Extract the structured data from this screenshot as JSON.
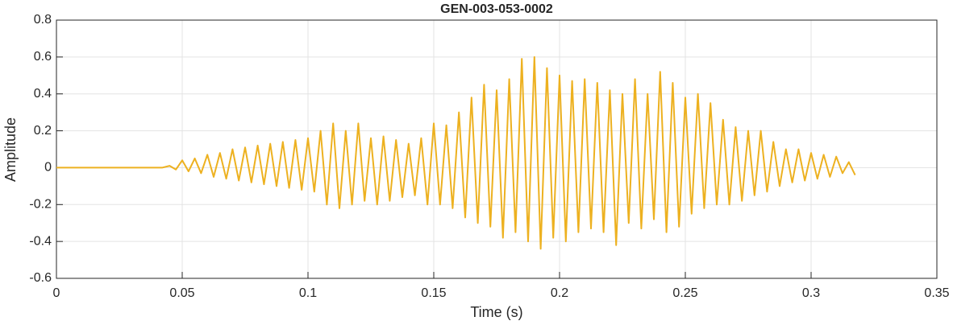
{
  "chart_data": {
    "type": "line",
    "title": "GEN-003-053-0002",
    "x_label": "Time (s)",
    "y_label": "Amplitude",
    "xlim": [
      0,
      0.35
    ],
    "xticks": [
      0,
      0.05,
      0.1,
      0.15,
      0.2,
      0.25,
      0.3,
      0.35
    ],
    "ylim": [
      -0.6,
      0.8
    ],
    "yticks": [
      -0.6,
      -0.4,
      -0.2,
      0,
      0.2,
      0.4,
      0.6,
      0.8
    ],
    "grid": true,
    "x": [
      0,
      0.042,
      0.045,
      0.0475,
      0.05,
      0.0525,
      0.055,
      0.0575,
      0.06,
      0.0625,
      0.065,
      0.0675,
      0.07,
      0.0725,
      0.075,
      0.0775,
      0.08,
      0.0825,
      0.085,
      0.0875,
      0.09,
      0.0925,
      0.095,
      0.0975,
      0.1,
      0.1025,
      0.105,
      0.1075,
      0.11,
      0.1125,
      0.115,
      0.1175,
      0.12,
      0.1225,
      0.125,
      0.1275,
      0.13,
      0.1325,
      0.135,
      0.1375,
      0.14,
      0.1425,
      0.145,
      0.1475,
      0.15,
      0.1525,
      0.155,
      0.1575,
      0.16,
      0.1625,
      0.165,
      0.1675,
      0.17,
      0.1725,
      0.175,
      0.1775,
      0.18,
      0.1825,
      0.185,
      0.1875,
      0.19,
      0.1925,
      0.195,
      0.1975,
      0.2,
      0.2025,
      0.205,
      0.2075,
      0.21,
      0.2125,
      0.215,
      0.2175,
      0.22,
      0.2225,
      0.225,
      0.2275,
      0.23,
      0.2325,
      0.235,
      0.2375,
      0.24,
      0.2425,
      0.245,
      0.2475,
      0.25,
      0.2525,
      0.255,
      0.2575,
      0.26,
      0.2625,
      0.265,
      0.2675,
      0.27,
      0.2725,
      0.275,
      0.2775,
      0.28,
      0.2825,
      0.285,
      0.2875,
      0.29,
      0.2925,
      0.295,
      0.2975,
      0.3,
      0.3025,
      0.305,
      0.3075,
      0.31,
      0.3125,
      0.315,
      0.3175
    ],
    "series": [
      {
        "color": "#EDB120",
        "values": [
          0,
          0,
          0.01,
          -0.01,
          0.04,
          -0.02,
          0.05,
          -0.03,
          0.07,
          -0.05,
          0.08,
          -0.06,
          0.1,
          -0.07,
          0.11,
          -0.08,
          0.12,
          -0.09,
          0.13,
          -0.1,
          0.14,
          -0.11,
          0.15,
          -0.12,
          0.16,
          -0.13,
          0.2,
          -0.2,
          0.24,
          -0.22,
          0.2,
          -0.2,
          0.24,
          -0.18,
          0.16,
          -0.2,
          0.17,
          -0.18,
          0.15,
          -0.16,
          0.13,
          -0.15,
          0.16,
          -0.2,
          0.24,
          -0.2,
          0.23,
          -0.22,
          0.3,
          -0.27,
          0.38,
          -0.3,
          0.45,
          -0.32,
          0.42,
          -0.38,
          0.48,
          -0.35,
          0.59,
          -0.4,
          0.6,
          -0.44,
          0.54,
          -0.38,
          0.5,
          -0.4,
          0.47,
          -0.35,
          0.48,
          -0.33,
          0.46,
          -0.35,
          0.42,
          -0.42,
          0.4,
          -0.3,
          0.48,
          -0.33,
          0.4,
          -0.28,
          0.52,
          -0.35,
          0.46,
          -0.32,
          0.38,
          -0.25,
          0.4,
          -0.22,
          0.35,
          -0.2,
          0.26,
          -0.2,
          0.22,
          -0.18,
          0.2,
          -0.15,
          0.2,
          -0.13,
          0.14,
          -0.1,
          0.1,
          -0.08,
          0.1,
          -0.07,
          0.08,
          -0.06,
          0.07,
          -0.05,
          0.06,
          -0.03,
          0.03,
          -0.04
        ]
      }
    ]
  }
}
